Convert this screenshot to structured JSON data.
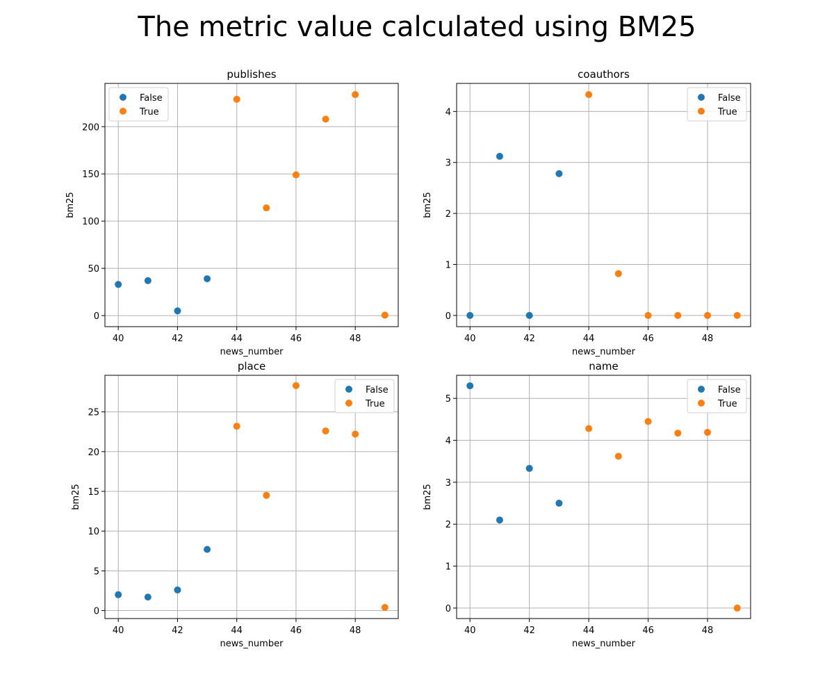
{
  "figure_title": "The metric value calculated using BM25",
  "colors": {
    "False": "#1f77b4",
    "True": "#ff7f0e",
    "grid": "#b0b0b0"
  },
  "chart_data": [
    {
      "type": "scatter",
      "title": "publishes",
      "xlabel": "news_number",
      "ylabel": "bm25",
      "xlim": [
        39.55,
        49.45
      ],
      "ylim": [
        -11.7,
        245.8
      ],
      "xticks": [
        40,
        42,
        44,
        46,
        48
      ],
      "yticks": [
        0,
        50,
        100,
        150,
        200
      ],
      "grid": true,
      "legend_position": "upper-left",
      "series": [
        {
          "name": "False",
          "color": "#1f77b4",
          "x": [
            40,
            41,
            42,
            43
          ],
          "y": [
            33,
            37,
            5,
            39
          ]
        },
        {
          "name": "True",
          "color": "#ff7f0e",
          "x": [
            44,
            45,
            46,
            47,
            48,
            49
          ],
          "y": [
            229,
            114,
            149,
            208,
            234,
            0.5
          ]
        }
      ]
    },
    {
      "type": "scatter",
      "title": "coauthors",
      "xlabel": "news_number",
      "ylabel": "bm25",
      "xlim": [
        39.55,
        49.45
      ],
      "ylim": [
        -0.22,
        4.55
      ],
      "xticks": [
        40,
        42,
        44,
        46,
        48
      ],
      "yticks": [
        0,
        1,
        2,
        3,
        4
      ],
      "grid": true,
      "legend_position": "upper-right",
      "series": [
        {
          "name": "False",
          "color": "#1f77b4",
          "x": [
            40,
            41,
            42,
            43
          ],
          "y": [
            0,
            3.12,
            0,
            2.78
          ]
        },
        {
          "name": "True",
          "color": "#ff7f0e",
          "x": [
            44,
            45,
            46,
            47,
            48,
            49
          ],
          "y": [
            4.33,
            0.82,
            0,
            0,
            0,
            0
          ]
        }
      ]
    },
    {
      "type": "scatter",
      "title": "place",
      "xlabel": "news_number",
      "ylabel": "bm25",
      "xlim": [
        39.55,
        49.45
      ],
      "ylim": [
        -1.0,
        29.6
      ],
      "xticks": [
        40,
        42,
        44,
        46,
        48
      ],
      "yticks": [
        0,
        5,
        10,
        15,
        20,
        25
      ],
      "grid": true,
      "legend_position": "upper-right",
      "series": [
        {
          "name": "False",
          "color": "#1f77b4",
          "x": [
            40,
            41,
            42,
            43
          ],
          "y": [
            2.0,
            1.7,
            2.6,
            7.7
          ]
        },
        {
          "name": "True",
          "color": "#ff7f0e",
          "x": [
            44,
            45,
            46,
            47,
            48,
            49
          ],
          "y": [
            23.2,
            14.5,
            28.3,
            22.6,
            22.2,
            0.4
          ]
        }
      ]
    },
    {
      "type": "scatter",
      "title": "name",
      "xlabel": "news_number",
      "ylabel": "bm25",
      "xlim": [
        39.55,
        49.45
      ],
      "ylim": [
        -0.25,
        5.55
      ],
      "xticks": [
        40,
        42,
        44,
        46,
        48
      ],
      "yticks": [
        0,
        1,
        2,
        3,
        4,
        5
      ],
      "grid": true,
      "legend_position": "upper-right",
      "series": [
        {
          "name": "False",
          "color": "#1f77b4",
          "x": [
            40,
            41,
            42,
            43
          ],
          "y": [
            5.3,
            2.1,
            3.33,
            2.5
          ]
        },
        {
          "name": "True",
          "color": "#ff7f0e",
          "x": [
            44,
            45,
            46,
            47,
            48,
            49
          ],
          "y": [
            4.28,
            3.62,
            4.45,
            4.17,
            4.19,
            0
          ]
        }
      ]
    }
  ]
}
